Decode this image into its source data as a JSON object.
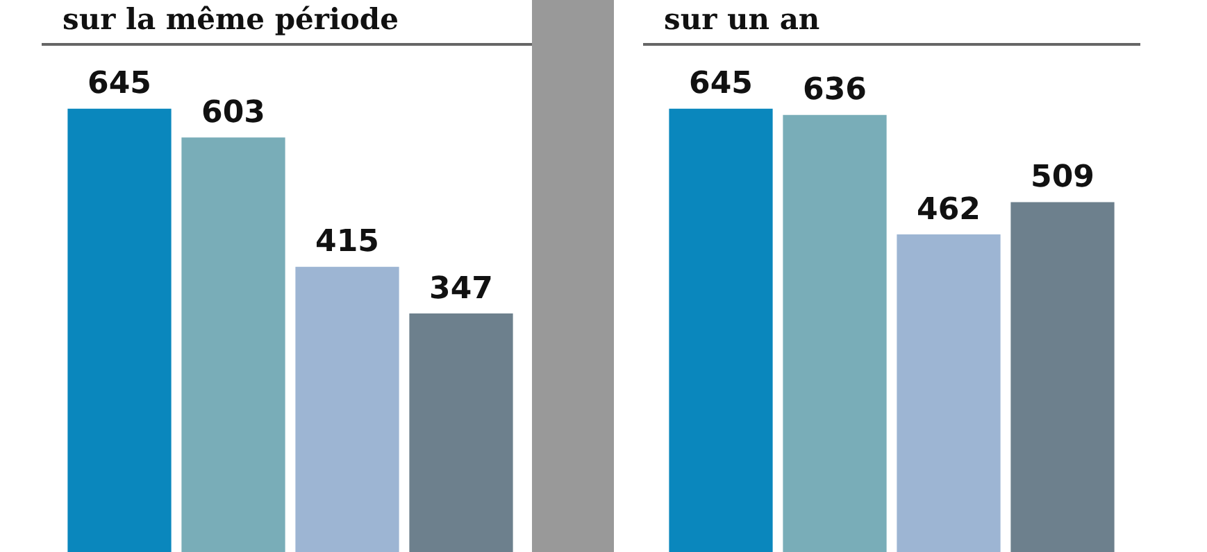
{
  "chart_data": [
    {
      "type": "bar",
      "title": "sur la même période",
      "categories": [
        null,
        null,
        null,
        null
      ],
      "values": [
        645,
        603,
        415,
        347
      ],
      "colors": [
        "#0a87bd",
        "#79adb8",
        "#9db5d3",
        "#6d808d"
      ],
      "data_labels": true
    },
    {
      "type": "bar",
      "title": "sur un an",
      "categories": [
        null,
        null,
        null,
        null
      ],
      "values": [
        645,
        636,
        462,
        509
      ],
      "colors": [
        "#0a87bd",
        "#79adb8",
        "#9db5d3",
        "#6d808d"
      ],
      "data_labels": true
    }
  ]
}
